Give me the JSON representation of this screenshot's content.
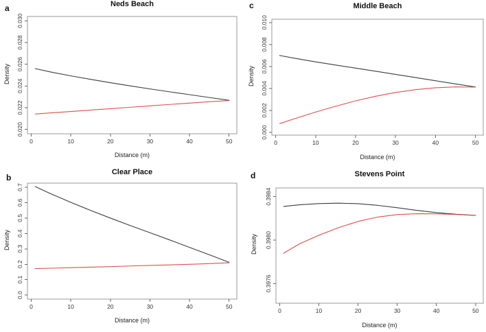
{
  "figure": {
    "background": "#ffffff",
    "axis_box_color": "#999999",
    "tick_color": "#666666",
    "tick_label_color": "#333333"
  },
  "chart_data": [
    {
      "type": "line",
      "panel_letter": "a",
      "title": "Neds Beach",
      "xlabel": "Distance (m)",
      "ylabel": "Density",
      "grid": false,
      "legend": false,
      "xlim": [
        -0.96,
        51.96
      ],
      "ylim": [
        0.0196,
        0.0304
      ],
      "xticks": [
        0,
        10,
        20,
        30,
        40,
        50
      ],
      "xtick_labels": [
        "0",
        "10",
        "20",
        "30",
        "40",
        "50"
      ],
      "yticks": [
        0.02,
        0.022,
        0.024,
        0.026,
        0.028,
        0.03
      ],
      "ytick_labels": [
        "0.020",
        "0.022",
        "0.024",
        "0.026",
        "0.028",
        "0.030"
      ],
      "series": [
        {
          "name": "black-line",
          "color": "#3c3c3c",
          "x": [
            1,
            5,
            10,
            15,
            20,
            25,
            30,
            35,
            40,
            45,
            50
          ],
          "y": [
            0.0256,
            0.02528,
            0.02493,
            0.02461,
            0.0243,
            0.02401,
            0.02373,
            0.02346,
            0.0232,
            0.02294,
            0.02268
          ]
        },
        {
          "name": "red-line",
          "color": "#dd504c",
          "x": [
            1,
            5,
            10,
            15,
            20,
            25,
            30,
            35,
            40,
            45,
            50
          ],
          "y": [
            0.02142,
            0.02152,
            0.02165,
            0.02178,
            0.02191,
            0.02204,
            0.02217,
            0.0223,
            0.02242,
            0.02255,
            0.02266
          ]
        }
      ]
    },
    {
      "type": "line",
      "panel_letter": "b",
      "title": "Clear Place",
      "xlabel": "Distance (m)",
      "ylabel": "Density",
      "grid": false,
      "legend": false,
      "xlim": [
        -0.96,
        51.96
      ],
      "ylim": [
        -0.026,
        0.727
      ],
      "xticks": [
        0,
        10,
        20,
        30,
        40,
        50
      ],
      "xtick_labels": [
        "0",
        "10",
        "20",
        "30",
        "40",
        "50"
      ],
      "yticks": [
        0.0,
        0.1,
        0.2,
        0.3,
        0.4,
        0.5,
        0.6,
        0.7
      ],
      "ytick_labels": [
        "0.0",
        "0.1",
        "0.2",
        "0.3",
        "0.4",
        "0.5",
        "0.6",
        "0.7"
      ],
      "series": [
        {
          "name": "black-line",
          "color": "#3c3c3c",
          "x": [
            1,
            5,
            10,
            15,
            20,
            25,
            30,
            35,
            40,
            45,
            50
          ],
          "y": [
            0.705,
            0.6575,
            0.602,
            0.55,
            0.5,
            0.452,
            0.405,
            0.358,
            0.31,
            0.262,
            0.213
          ]
        },
        {
          "name": "red-line",
          "color": "#dd504c",
          "x": [
            1,
            5,
            10,
            15,
            20,
            25,
            30,
            35,
            40,
            45,
            50
          ],
          "y": [
            0.172,
            0.1745,
            0.178,
            0.1815,
            0.185,
            0.189,
            0.1925,
            0.196,
            0.2,
            0.2045,
            0.21
          ]
        }
      ]
    },
    {
      "type": "line",
      "panel_letter": "c",
      "title": "Middle Beach",
      "xlabel": "Distance (m)",
      "ylabel": "Density",
      "grid": false,
      "legend": false,
      "xlim": [
        -0.96,
        51.96
      ],
      "ylim": [
        -0.00025,
        0.0103
      ],
      "xticks": [
        0,
        10,
        20,
        30,
        40,
        50
      ],
      "xtick_labels": [
        "0",
        "10",
        "20",
        "30",
        "40",
        "50"
      ],
      "yticks": [
        0.0,
        0.002,
        0.004,
        0.006,
        0.008,
        0.01
      ],
      "ytick_labels": [
        "0.000",
        "0.002",
        "0.004",
        "0.006",
        "0.008",
        "0.010"
      ],
      "series": [
        {
          "name": "black-line",
          "color": "#3c3c3c",
          "x": [
            1,
            5,
            10,
            15,
            20,
            25,
            30,
            35,
            40,
            45,
            50
          ],
          "y": [
            0.007,
            0.00673,
            0.00642,
            0.00613,
            0.00585,
            0.00557,
            0.00528,
            0.00499,
            0.0047,
            0.00441,
            0.00413
          ]
        },
        {
          "name": "red-line",
          "color": "#dd504c",
          "x": [
            1,
            5,
            10,
            15,
            20,
            25,
            30,
            35,
            40,
            45,
            50
          ],
          "y": [
            0.0008,
            0.00128,
            0.00185,
            0.00238,
            0.00287,
            0.00329,
            0.00363,
            0.00389,
            0.00406,
            0.00414,
            0.00412
          ]
        }
      ]
    },
    {
      "type": "line",
      "panel_letter": "d",
      "title": "Stevens Point",
      "xlabel": "Distance (m)",
      "ylabel": "Density",
      "grid": false,
      "legend": false,
      "xlim": [
        -0.96,
        51.96
      ],
      "ylim": [
        0.39742,
        0.39848
      ],
      "xticks": [
        0,
        10,
        20,
        30,
        40,
        50
      ],
      "xtick_labels": [
        "0",
        "10",
        "20",
        "30",
        "40",
        "50"
      ],
      "yticks": [
        0.3976,
        0.398,
        0.3984
      ],
      "ytick_labels": [
        "0.3976",
        "0.3980",
        "0.3984"
      ],
      "series": [
        {
          "name": "black-line",
          "color": "#3c3c3c",
          "x": [
            1,
            5,
            10,
            15,
            20,
            25,
            30,
            35,
            40,
            45,
            50
          ],
          "y": [
            0.39831,
            0.398325,
            0.398336,
            0.39834,
            0.398335,
            0.39832,
            0.398298,
            0.398274,
            0.398253,
            0.398238,
            0.398228
          ]
        },
        {
          "name": "red-line",
          "color": "#dd504c",
          "x": [
            1,
            5,
            10,
            15,
            20,
            25,
            30,
            35,
            40,
            45,
            50
          ],
          "y": [
            0.39788,
            0.397965,
            0.398045,
            0.398115,
            0.398172,
            0.398212,
            0.398235,
            0.398243,
            0.398242,
            0.398236,
            0.398227
          ]
        }
      ]
    }
  ]
}
